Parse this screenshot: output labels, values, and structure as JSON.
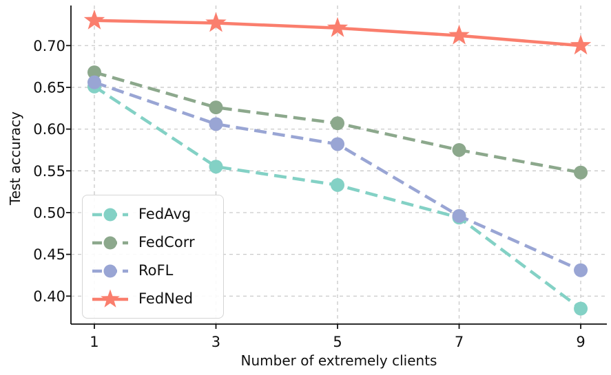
{
  "figure": {
    "background": "#ffffff",
    "text_color": "#111111"
  },
  "chart_data": {
    "type": "line",
    "title": "",
    "xlabel": "Number of extremely clients",
    "ylabel": "Test accuracy",
    "x": [
      1,
      3,
      5,
      7,
      9
    ],
    "xticks": {
      "values": [
        1,
        3,
        5,
        7,
        9
      ],
      "labels": [
        "1",
        "3",
        "5",
        "7",
        "9"
      ]
    },
    "yticks": {
      "values": [
        0.4,
        0.45,
        0.5,
        0.55,
        0.6,
        0.65,
        0.7
      ],
      "labels": [
        "0.40",
        "0.45",
        "0.50",
        "0.55",
        "0.60",
        "0.65",
        "0.70"
      ]
    },
    "xlim": [
      0.615,
      9.43
    ],
    "ylim": [
      0.3665,
      0.748
    ],
    "grid": true,
    "grid_color": "#c9c9c9",
    "legend_position": "lower left",
    "series": [
      {
        "name": "FedAvg",
        "color": "#83D1C5",
        "line_style": "dashed",
        "marker": "circle",
        "values": [
          0.651,
          0.555,
          0.533,
          0.494,
          0.385
        ]
      },
      {
        "name": "FedCorr",
        "color": "#8CA88C",
        "line_style": "dashed",
        "marker": "circle",
        "values": [
          0.668,
          0.626,
          0.607,
          0.575,
          0.548
        ]
      },
      {
        "name": "RoFL",
        "color": "#99A5D4",
        "line_style": "dashed",
        "marker": "circle",
        "values": [
          0.656,
          0.606,
          0.582,
          0.496,
          0.431
        ]
      },
      {
        "name": "FedNed",
        "color": "#FA7E6D",
        "line_style": "solid",
        "marker": "star",
        "values": [
          0.73,
          0.727,
          0.721,
          0.712,
          0.7
        ]
      }
    ]
  }
}
